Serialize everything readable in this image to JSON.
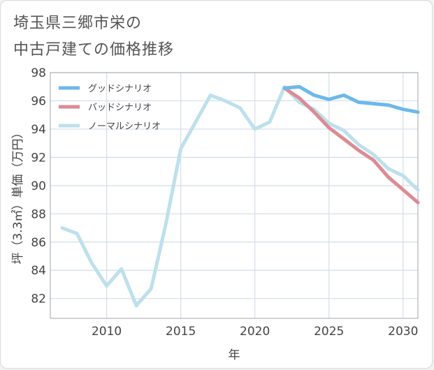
{
  "title": [
    "埼玉県三郷市栄の",
    "中古戸建ての価格推移"
  ],
  "chart_data": {
    "type": "line",
    "xlabel": "年",
    "ylabel": "坪（3.3㎡）単価（万円）",
    "xlim": [
      2006.2,
      2031
    ],
    "ylim": [
      80.6,
      98
    ],
    "x_ticks": [
      2010,
      2015,
      2020,
      2025,
      2030
    ],
    "y_ticks": [
      82,
      84,
      86,
      88,
      90,
      92,
      94,
      96,
      98
    ],
    "grid": true,
    "legend_position": "top-left",
    "series": [
      {
        "name": "グッドシナリオ",
        "color": "#6db8ea",
        "x": [
          2022,
          2023,
          2024,
          2025,
          2026,
          2027,
          2028,
          2029,
          2030,
          2031
        ],
        "y": [
          96.9,
          97.0,
          96.4,
          96.1,
          96.4,
          95.9,
          95.8,
          95.7,
          95.4,
          95.2
        ]
      },
      {
        "name": "バッドシナリオ",
        "color": "#dc8b93",
        "x": [
          2022,
          2023,
          2024,
          2025,
          2026,
          2027,
          2028,
          2029,
          2030,
          2031
        ],
        "y": [
          96.9,
          96.2,
          95.2,
          94.1,
          93.3,
          92.5,
          91.8,
          90.6,
          89.7,
          88.8
        ]
      },
      {
        "name": "ノーマルシナリオ",
        "color": "#bde0ec",
        "x": [
          2007,
          2008,
          2009,
          2010,
          2011,
          2012,
          2013,
          2014,
          2015,
          2016,
          2017,
          2018,
          2019,
          2020,
          2021,
          2022,
          2023,
          2024,
          2025,
          2026,
          2027,
          2028,
          2029,
          2030,
          2031
        ],
        "y": [
          87.0,
          86.6,
          84.5,
          82.9,
          84.1,
          81.5,
          82.7,
          87.3,
          92.6,
          94.5,
          96.4,
          96.0,
          95.5,
          94.0,
          94.5,
          97.0,
          95.9,
          95.4,
          94.4,
          93.9,
          92.9,
          92.2,
          91.2,
          90.7,
          89.7
        ]
      }
    ]
  }
}
